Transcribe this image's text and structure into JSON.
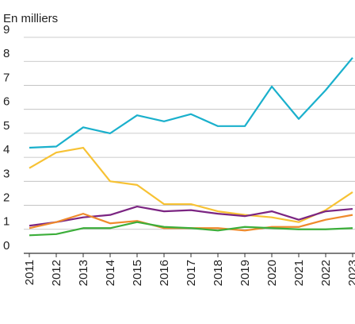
{
  "chart_data": {
    "type": "line",
    "y_label": "En milliers",
    "categories": [
      "2011",
      "2012",
      "2013",
      "2014",
      "2015",
      "2016",
      "2017",
      "2018",
      "2019",
      "2020",
      "2021",
      "2022",
      "2023"
    ],
    "series": [
      {
        "color": "#1ab0cc",
        "values": [
          4.4,
          4.45,
          5.25,
          5.0,
          5.75,
          5.5,
          5.8,
          5.3,
          5.3,
          6.95,
          5.6,
          6.8,
          8.15
        ]
      },
      {
        "color": "#f7c234",
        "values": [
          3.55,
          4.2,
          4.4,
          3.0,
          2.85,
          2.05,
          2.05,
          1.75,
          1.6,
          1.5,
          1.3,
          1.8,
          2.55
        ]
      },
      {
        "color": "#7b2582",
        "values": [
          1.15,
          1.3,
          1.5,
          1.6,
          1.95,
          1.75,
          1.8,
          1.65,
          1.55,
          1.75,
          1.4,
          1.75,
          1.85
        ]
      },
      {
        "color": "#ef8a2c",
        "values": [
          1.05,
          1.3,
          1.65,
          1.25,
          1.35,
          1.05,
          1.05,
          1.05,
          0.95,
          1.1,
          1.1,
          1.4,
          1.6
        ]
      },
      {
        "color": "#3cae3a",
        "values": [
          0.75,
          0.8,
          1.05,
          1.05,
          1.3,
          1.1,
          1.05,
          0.95,
          1.1,
          1.05,
          1.0,
          1.0,
          1.05
        ]
      }
    ],
    "ylim": [
      0,
      9
    ],
    "yticks": [
      0,
      1,
      2,
      3,
      4,
      5,
      6,
      7,
      8,
      9
    ],
    "grid": true
  }
}
